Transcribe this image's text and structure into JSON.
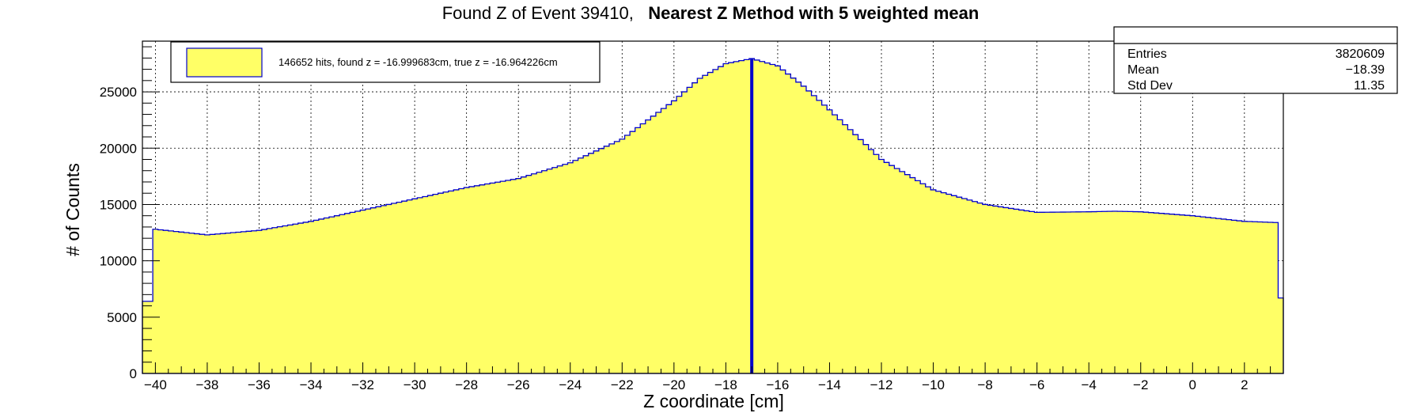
{
  "title": {
    "part1": "Found Z of Event 39410,",
    "part2": "Nearest Z Method with 5 weighted mean"
  },
  "stats": {
    "entries_label": "Entries",
    "entries_value": "3820609",
    "mean_label": "Mean",
    "mean_value": "−18.39",
    "stddev_label": "Std Dev",
    "stddev_value": "11.35"
  },
  "legend": {
    "label": "146652 hits, found z = -16.999683cm, true z = -16.964226cm"
  },
  "colors": {
    "fill": "#ffff66",
    "line": "#0000cc",
    "marker": "#0000cc"
  },
  "chart_data": {
    "type": "histogram",
    "title": "Found Z of Event 39410,   Nearest Z Method with 5 weighted mean",
    "xlabel": "Z coordinate [cm]",
    "ylabel": "# of Counts",
    "xlim": [
      -40.5,
      3.5
    ],
    "ylim": [
      0,
      29500
    ],
    "x_ticks": [
      -40,
      -38,
      -36,
      -34,
      -32,
      -30,
      -28,
      -26,
      -24,
      -22,
      -20,
      -18,
      -16,
      -14,
      -12,
      -10,
      -8,
      -6,
      -4,
      -2,
      0,
      2
    ],
    "y_ticks": [
      0,
      5000,
      10000,
      15000,
      20000,
      25000
    ],
    "grid": true,
    "found_z": -17.0,
    "series": [
      {
        "x": [
          -40.5,
          -40,
          -38,
          -36,
          -34,
          -32,
          -30,
          -28,
          -26,
          -24,
          -22,
          -20,
          -19,
          -18,
          -17,
          -16,
          -15,
          -14,
          -12,
          -10,
          -8,
          -6,
          -4,
          -3,
          -2,
          0,
          2,
          3.2,
          3.5
        ],
        "values": [
          6400,
          12800,
          12300,
          12700,
          13500,
          14500,
          15500,
          16500,
          17300,
          18700,
          20800,
          24200,
          26200,
          27500,
          27950,
          27300,
          25500,
          23400,
          19000,
          16300,
          15000,
          14300,
          14350,
          14400,
          14350,
          14000,
          13500,
          13400,
          6700
        ]
      }
    ]
  }
}
